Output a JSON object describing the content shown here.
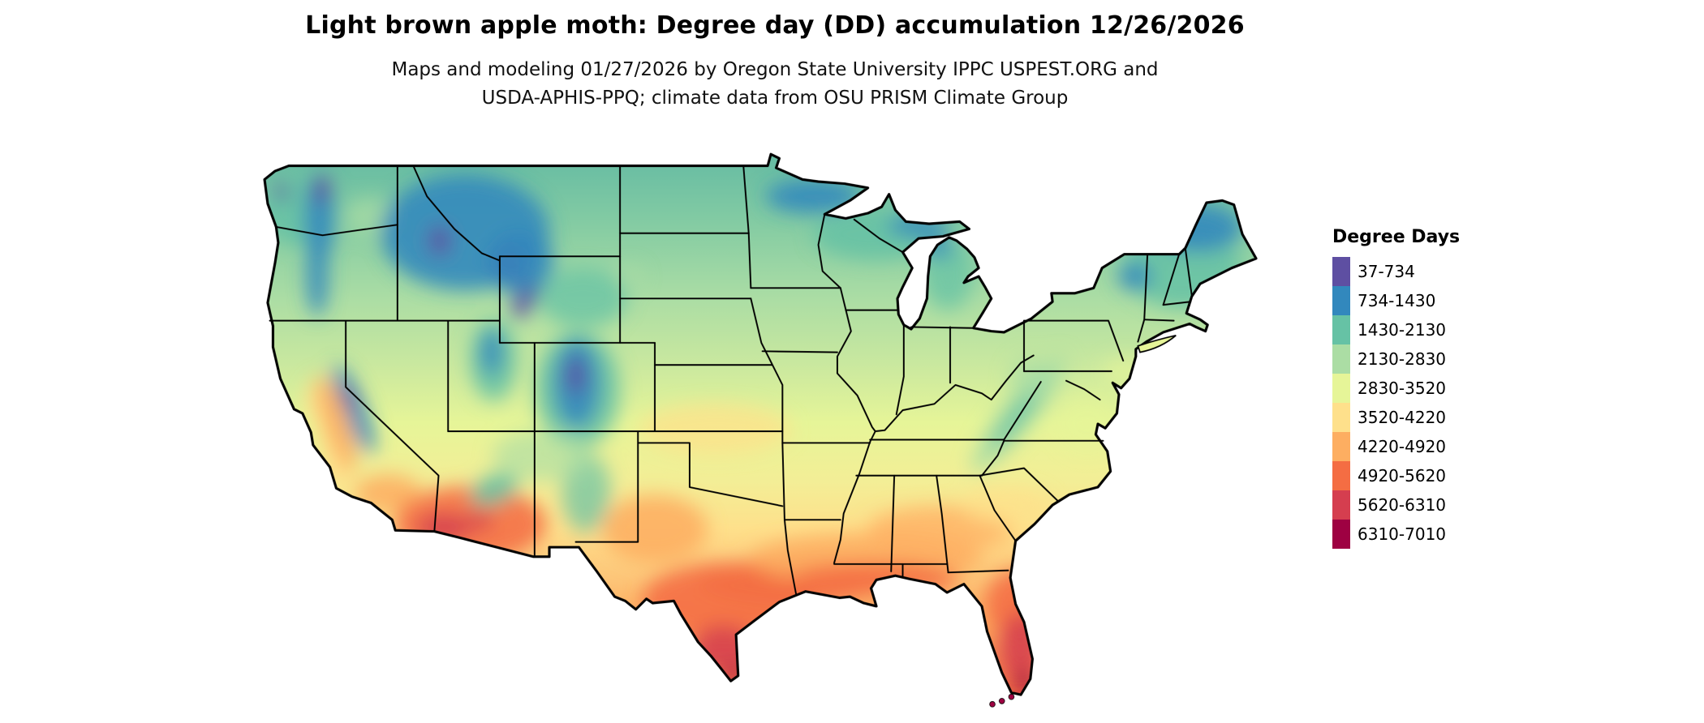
{
  "header": {
    "title": "Light brown apple moth: Degree day (DD) accumulation 12/26/2026",
    "subtitle_line1": "Maps and modeling 01/27/2026 by Oregon State University IPPC USPEST.ORG and",
    "subtitle_line2": "USDA-APHIS-PPQ; climate data from OSU PRISM Climate Group"
  },
  "legend": {
    "title": "Degree Days",
    "items": [
      {
        "label": "37-734",
        "color": "#5e4fa2"
      },
      {
        "label": "734-1430",
        "color": "#3288bd"
      },
      {
        "label": "1430-2130",
        "color": "#66c2a5"
      },
      {
        "label": "2130-2830",
        "color": "#abdda4"
      },
      {
        "label": "2830-3520",
        "color": "#e6f598"
      },
      {
        "label": "3520-4220",
        "color": "#fee08b"
      },
      {
        "label": "4220-4920",
        "color": "#fdae61"
      },
      {
        "label": "4920-5620",
        "color": "#f46d43"
      },
      {
        "label": "5620-6310",
        "color": "#d53e4f"
      },
      {
        "label": "6310-7010",
        "color": "#9e0142"
      }
    ]
  },
  "map": {
    "outline_color": "#000000",
    "background": "#ffffff"
  },
  "chart_data": {
    "type": "heatmap",
    "title": "Light brown apple moth: Degree day (DD) accumulation 12/26/2026",
    "legend_title": "Degree Days",
    "region": "Contiguous United States",
    "bins": [
      "37-734",
      "734-1430",
      "1430-2130",
      "2130-2830",
      "2830-3520",
      "3520-4220",
      "4220-4920",
      "4920-5620",
      "5620-6310",
      "6310-7010"
    ],
    "colors": [
      "#5e4fa2",
      "#3288bd",
      "#66c2a5",
      "#abdda4",
      "#e6f598",
      "#fee08b",
      "#fdae61",
      "#f46d43",
      "#d53e4f",
      "#9e0142"
    ],
    "value_range": [
      37,
      7010
    ],
    "pattern": "Low accumulation (purple/blue) in northern Rockies, Cascades, Sierra Nevada, northern Minnesota, Great Lakes and northern New England; moderate (green/yellow) across the Plains and Midwest; high (orange/red/maroon) across southern Arizona, south Texas, Gulf Coast and peninsular Florida."
  }
}
